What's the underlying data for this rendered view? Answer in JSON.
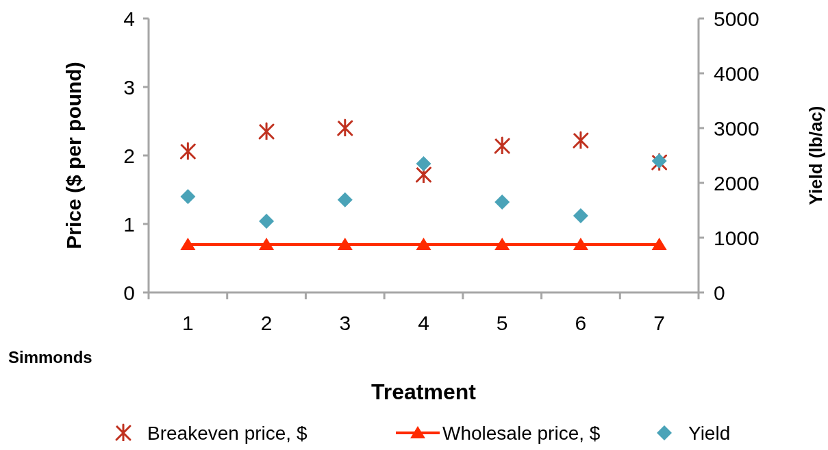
{
  "chart_data": {
    "type": "scatter",
    "xlabel": "Treatment",
    "ylabel": "Price ($ per pound)",
    "y2label": "Yield (lb/ac)",
    "categories": [
      "1",
      "2",
      "3",
      "4",
      "5",
      "6",
      "7"
    ],
    "ylim": [
      0,
      4
    ],
    "yticks": [
      0,
      1,
      2,
      3,
      4
    ],
    "y2lim": [
      0,
      5000
    ],
    "y2ticks": [
      0,
      1000,
      2000,
      3000,
      4000,
      5000
    ],
    "grid": false,
    "legend": "bottom",
    "series": [
      {
        "name": "Breakeven price, $",
        "type": "scatter",
        "marker": "cross",
        "color": "#c0311f",
        "values": [
          2.06,
          2.35,
          2.4,
          1.72,
          2.14,
          2.22,
          1.9
        ]
      },
      {
        "name": "Wholesale price, $",
        "type": "line",
        "marker": "triangle",
        "color": "#ff2a00",
        "values": [
          0.7,
          0.7,
          0.7,
          0.7,
          0.7,
          0.7,
          0.7
        ]
      },
      {
        "name": "Yield",
        "type": "scatter",
        "marker": "diamond",
        "axis": "y2",
        "color": "#4aa3b8",
        "values": [
          1750,
          1300,
          1690,
          2350,
          1650,
          1400,
          2400
        ]
      }
    ],
    "annotations": [
      "Simmonds"
    ]
  }
}
